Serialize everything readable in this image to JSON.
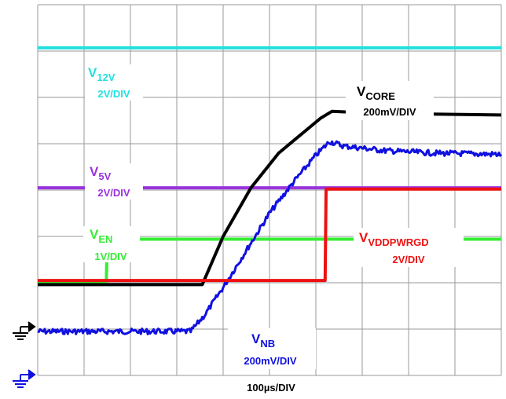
{
  "chart_data": {
    "type": "line",
    "title": "",
    "xlabel": "100µs/DIV",
    "x_units": "divisions",
    "y_units": "divisions",
    "grid": true,
    "grid_divisions": {
      "x": 10,
      "y": 8
    },
    "xlim": [
      0,
      10
    ],
    "ylim": [
      -8,
      0
    ],
    "colors": {
      "v12v": "#22e0e0",
      "vcore": "#000000",
      "vnb": "#1010e0",
      "v5v": "#9933dd",
      "ven": "#33ee33",
      "vpwrgd": "#ee1111",
      "grid": "#9a9a9a"
    },
    "series": [
      {
        "key": "v12v",
        "label_main": "V",
        "label_sub": "12V",
        "scale": "2V/DIV",
        "x": [
          0,
          10
        ],
        "y": [
          -0.93,
          -0.93
        ]
      },
      {
        "key": "vcore",
        "label_main": "V",
        "label_sub": "CORE",
        "scale": "200mV/DIV",
        "x": [
          0,
          3.55,
          4.0,
          4.6,
          5.2,
          6.1,
          6.35,
          7.5,
          8.5,
          10
        ],
        "y": [
          -6.04,
          -6.04,
          -5.0,
          -3.95,
          -3.2,
          -2.45,
          -2.3,
          -2.35,
          -2.36,
          -2.38
        ]
      },
      {
        "key": "vnb",
        "label_main": "V",
        "label_sub": "NB",
        "scale": "200mV/DIV",
        "x": [
          0,
          3.3,
          3.6,
          4.0,
          4.5,
          5.0,
          5.5,
          6.0,
          6.3,
          6.6,
          7.5,
          8.5,
          10
        ],
        "y": [
          -7.05,
          -7.05,
          -6.7,
          -6.1,
          -5.3,
          -4.5,
          -3.85,
          -3.25,
          -2.95,
          -3.05,
          -3.15,
          -3.2,
          -3.23
        ]
      },
      {
        "key": "v5v",
        "label_main": "V",
        "label_sub": "5V",
        "scale": "2V/DIV",
        "x": [
          0,
          10
        ],
        "y": [
          -3.95,
          -3.95
        ]
      },
      {
        "key": "ven",
        "label_main": "V",
        "label_sub": "EN",
        "scale": "1V/DIV",
        "x": [
          0,
          1.48,
          1.5,
          10
        ],
        "y": [
          -5.98,
          -5.98,
          -5.06,
          -5.06
        ]
      },
      {
        "key": "vpwrgd",
        "label_main": "V",
        "label_sub": "VDDPWRGD",
        "scale": "2V/DIV",
        "x": [
          0,
          6.2,
          6.22,
          10
        ],
        "y": [
          -5.95,
          -5.95,
          -3.98,
          -3.98
        ]
      }
    ]
  }
}
